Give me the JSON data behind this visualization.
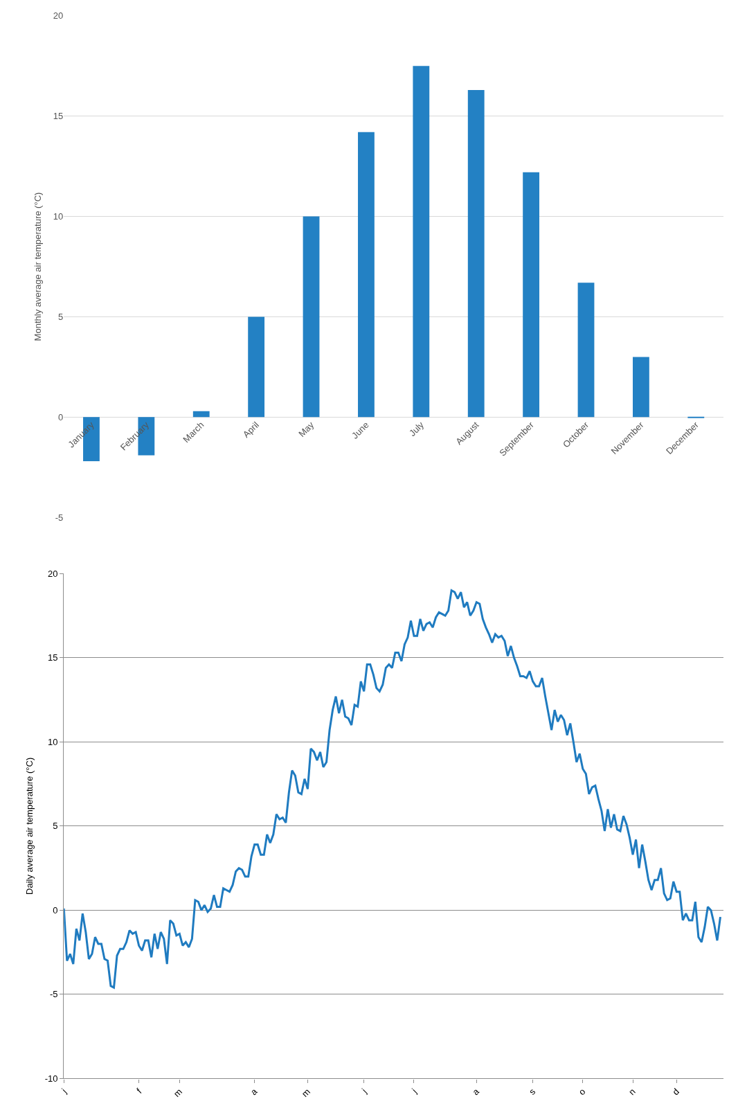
{
  "chart_data": [
    {
      "type": "bar",
      "ylabel": "Monthly average air temperature (°C)",
      "categories": [
        "January",
        "February",
        "March",
        "April",
        "May",
        "June",
        "July",
        "August",
        "September",
        "October",
        "November",
        "December"
      ],
      "values": [
        -2.2,
        -1.9,
        0.3,
        5.0,
        10.0,
        14.2,
        17.5,
        16.3,
        12.2,
        6.7,
        3.0,
        -0.05
      ],
      "color": "#2381c4",
      "ylim": [
        -5,
        20
      ],
      "yticks": [
        -5,
        0,
        5,
        10,
        15,
        20
      ],
      "grid": "y"
    },
    {
      "type": "line",
      "ylabel": "Daily average air temperature (°C)",
      "color": "#1f7bc0",
      "categories": [
        "j",
        null,
        null,
        null,
        null,
        null,
        null,
        null,
        null,
        null,
        null,
        null,
        null,
        null,
        null,
        null,
        null,
        null,
        null,
        null,
        null,
        null,
        null,
        null,
        "f",
        null,
        null,
        null,
        null,
        null,
        null,
        null,
        null,
        null,
        null,
        null,
        null,
        "m",
        null,
        null,
        null,
        null,
        null,
        null,
        null,
        null,
        null,
        null,
        null,
        null,
        null,
        null,
        null,
        null,
        null,
        null,
        null,
        null,
        null,
        null,
        null,
        "a",
        null,
        null,
        null,
        null,
        null,
        null,
        null,
        null,
        null,
        null,
        null,
        null,
        null,
        null,
        null,
        null,
        "m",
        null,
        null,
        null,
        null,
        null,
        null,
        null,
        null,
        null,
        null,
        null,
        null,
        null,
        null,
        null,
        null,
        null,
        "j",
        null,
        null,
        null,
        null,
        null,
        null,
        null,
        null,
        null,
        null,
        null,
        null,
        null,
        null,
        null,
        "j",
        null,
        null,
        null,
        null,
        null,
        null,
        null,
        null,
        null,
        null,
        null,
        null,
        null,
        null,
        null,
        null,
        null,
        null,
        null,
        "a",
        null,
        null,
        null,
        null,
        null,
        null,
        null,
        null,
        null,
        null,
        null,
        null,
        null,
        null,
        null,
        null,
        null,
        "s",
        null,
        null,
        null,
        null,
        null,
        null,
        null,
        null,
        null,
        null,
        null,
        null,
        null,
        null,
        null,
        "o",
        null,
        null,
        null,
        null,
        null,
        null,
        null,
        null,
        null,
        null,
        null,
        null,
        null,
        null,
        null,
        "n",
        null,
        null,
        null,
        null,
        null,
        null,
        null,
        null,
        null,
        null,
        null,
        null,
        null,
        "d",
        null,
        null,
        null,
        null,
        null,
        null,
        null,
        null,
        null,
        null,
        null,
        null,
        null,
        null
      ],
      "values": [
        0.1,
        -3.0,
        -2.6,
        -3.2,
        -1.1,
        -1.8,
        -0.2,
        -1.3,
        -2.9,
        -2.6,
        -1.6,
        -2.0,
        -2.0,
        -2.9,
        -3.0,
        -4.5,
        -4.6,
        -2.7,
        -2.3,
        -2.3,
        -1.9,
        -1.2,
        -1.4,
        -1.3,
        -2.1,
        -2.4,
        -1.8,
        -1.8,
        -2.8,
        -1.4,
        -2.3,
        -1.3,
        -1.7,
        -3.2,
        -0.6,
        -0.8,
        -1.5,
        -1.4,
        -2.1,
        -1.9,
        -2.2,
        -1.7,
        0.6,
        0.5,
        0.0,
        0.3,
        -0.1,
        0.1,
        0.9,
        0.2,
        0.2,
        1.3,
        1.2,
        1.1,
        1.5,
        2.3,
        2.5,
        2.4,
        2.0,
        2.0,
        3.2,
        3.9,
        3.9,
        3.3,
        3.3,
        4.5,
        4.0,
        4.5,
        5.7,
        5.4,
        5.5,
        5.2,
        7.0,
        8.3,
        8.0,
        7.0,
        6.9,
        7.8,
        7.2,
        9.6,
        9.4,
        8.9,
        9.4,
        8.5,
        8.8,
        10.7,
        11.9,
        12.7,
        11.7,
        12.5,
        11.5,
        11.4,
        11.0,
        12.2,
        12.1,
        13.6,
        13.0,
        14.6,
        14.6,
        14.0,
        13.2,
        13.0,
        13.4,
        14.4,
        14.6,
        14.4,
        15.3,
        15.3,
        14.8,
        15.8,
        16.2,
        17.2,
        16.3,
        16.3,
        17.3,
        16.6,
        17.0,
        17.1,
        16.8,
        17.4,
        17.7,
        17.6,
        17.5,
        17.8,
        19.0,
        18.9,
        18.5,
        18.9,
        18.0,
        18.3,
        17.5,
        17.8,
        18.3,
        18.2,
        17.3,
        16.8,
        16.4,
        15.9,
        16.4,
        16.2,
        16.3,
        16.0,
        15.1,
        15.7,
        15.0,
        14.5,
        13.9,
        13.9,
        13.8,
        14.2,
        13.6,
        13.3,
        13.3,
        13.8,
        12.7,
        11.7,
        10.7,
        11.9,
        11.2,
        11.6,
        11.3,
        10.4,
        11.1,
        10.0,
        8.8,
        9.3,
        8.4,
        8.1,
        6.9,
        7.3,
        7.4,
        6.6,
        5.9,
        4.7,
        6.0,
        4.9,
        5.7,
        4.8,
        4.7,
        5.6,
        5.1,
        4.3,
        3.3,
        4.2,
        2.5,
        3.9,
        2.9,
        1.8,
        1.2,
        1.8,
        1.8,
        2.5,
        1.0,
        0.6,
        0.7,
        1.7,
        1.1,
        1.1,
        -0.6,
        -0.2,
        -0.6,
        -0.6,
        0.5,
        -1.6,
        -1.9,
        -1.0,
        0.2,
        0.0,
        -0.8,
        -1.8,
        -0.4
      ],
      "ylim": [
        -10,
        20
      ],
      "yticks": [
        -10,
        -5,
        0,
        5,
        10,
        15,
        20
      ],
      "grid": "y"
    }
  ]
}
